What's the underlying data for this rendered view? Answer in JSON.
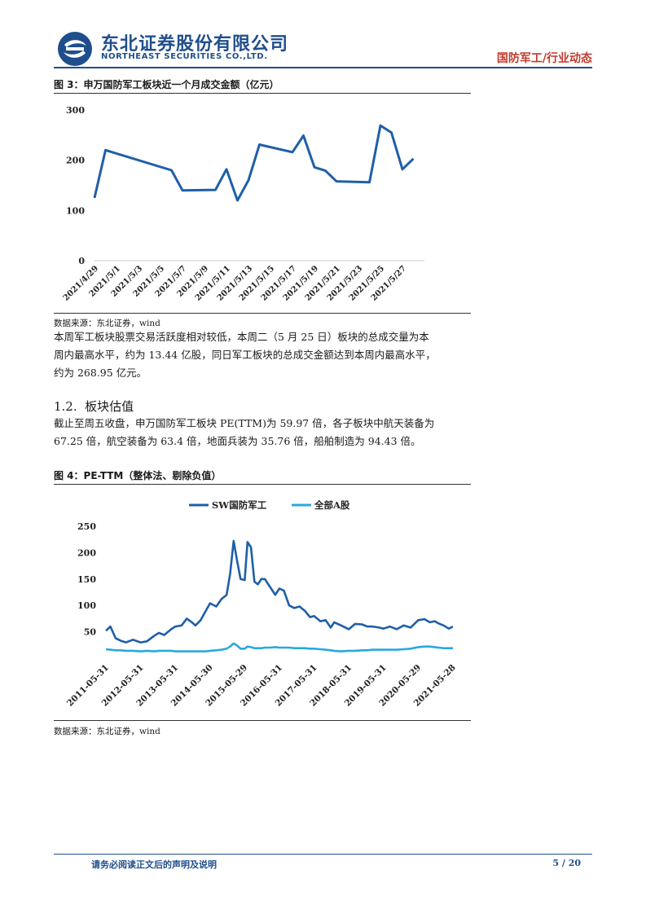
{
  "header": {
    "company_cn": "东北证券股份有限公司",
    "company_en": "NORTHEAST SECURITIES CO.,LTD.",
    "report_tag": "国防军工/行业动态",
    "brand_color": "#1f4e8c",
    "tag_color": "#c0392b"
  },
  "figure3": {
    "title": "图 3：申万国防军工板块近一个月成交金额（亿元）",
    "source": "数据来源：东北证券，wind"
  },
  "paragraph1": {
    "lines": [
      "本周军工板块股票交易活跃度相对较低，本周二（5 月 25 日）板块的总成交量为本",
      "周内最高水平，约为 13.44 亿股，同日军工板块的总成交金额达到本周内最高水平，",
      "约为 268.95 亿元。"
    ]
  },
  "section": {
    "number": "1.2.",
    "title": "板块估值"
  },
  "paragraph2": {
    "lines": [
      "截止至周五收盘，申万国防军工板块 PE(TTM)为 59.97 倍，各子板块中航天装备为",
      "67.25 倍，航空装备为 63.4 倍，地面兵装为 35.76 倍，船舶制造为 94.43 倍。"
    ]
  },
  "figure4": {
    "title": "图 4：PE-TTM（整体法、剔除负值）",
    "source": "数据来源：东北证券，wind"
  },
  "footer": {
    "note": "请务必阅读正文后的声明及说明",
    "page": "5 / 20"
  },
  "chart_data": [
    {
      "type": "line",
      "title": "",
      "ylim": [
        0,
        300
      ],
      "y_ticks": [
        "0",
        "100",
        "200",
        "300"
      ],
      "x_tick_labels": [
        "2021/4/29",
        "2021/5/1",
        "2021/5/3",
        "2021/5/5",
        "2021/5/7",
        "2021/5/9",
        "2021/5/11",
        "2021/5/13",
        "2021/5/15",
        "2021/5/17",
        "2021/5/19",
        "2021/5/21",
        "2021/5/23",
        "2021/5/25",
        "2021/5/27"
      ],
      "x": [
        "2021/4/29",
        "2021/4/30",
        "2021/5/6",
        "2021/5/7",
        "2021/5/10",
        "2021/5/11",
        "2021/5/12",
        "2021/5/13",
        "2021/5/14",
        "2021/5/17",
        "2021/5/18",
        "2021/5/19",
        "2021/5/20",
        "2021/5/21",
        "2021/5/24",
        "2021/5/25",
        "2021/5/26",
        "2021/5/27",
        "2021/5/28"
      ],
      "series": [
        {
          "color": "#1f5fa8",
          "values": [
            125,
            220,
            180,
            140,
            141,
            182,
            120,
            160,
            231,
            216,
            249,
            186,
            179,
            158,
            156,
            269,
            255,
            182,
            203
          ]
        }
      ],
      "grid": false,
      "legend": "none"
    },
    {
      "type": "line",
      "title": "",
      "ylim": [
        0,
        250
      ],
      "y_ticks": [
        "50",
        "100",
        "150",
        "200",
        "250"
      ],
      "x_tick_labels": [
        "2011-05-31",
        "2012-05-31",
        "2013-05-31",
        "2014-05-30",
        "2015-05-29",
        "2016-05-31",
        "2017-05-31",
        "2018-05-31",
        "2019-05-31",
        "2020-05-29",
        "2021-05-28"
      ],
      "x": [
        2011.42,
        2011.55,
        2011.7,
        2011.85,
        2012.0,
        2012.2,
        2012.42,
        2012.6,
        2012.8,
        2012.95,
        2013.1,
        2013.3,
        2013.42,
        2013.6,
        2013.75,
        2013.9,
        2014.0,
        2014.15,
        2014.3,
        2014.42,
        2014.6,
        2014.75,
        2014.9,
        2015.0,
        2015.1,
        2015.2,
        2015.3,
        2015.42,
        2015.5,
        2015.6,
        2015.7,
        2015.8,
        2015.9,
        2016.0,
        2016.15,
        2016.3,
        2016.42,
        2016.55,
        2016.7,
        2016.85,
        2017.0,
        2017.15,
        2017.3,
        2017.42,
        2017.6,
        2017.75,
        2017.9,
        2018.0,
        2018.2,
        2018.42,
        2018.6,
        2018.8,
        2018.95,
        2019.1,
        2019.3,
        2019.42,
        2019.6,
        2019.8,
        2020.0,
        2020.2,
        2020.42,
        2020.6,
        2020.75,
        2020.9,
        2021.0,
        2021.15,
        2021.3,
        2021.42
      ],
      "series": [
        {
          "name": "SW国防军工",
          "color": "#1f5fa8",
          "values": [
            52,
            60,
            38,
            33,
            30,
            35,
            30,
            32,
            42,
            48,
            44,
            55,
            60,
            62,
            75,
            68,
            62,
            72,
            90,
            104,
            98,
            112,
            120,
            160,
            222,
            185,
            150,
            148,
            220,
            210,
            145,
            140,
            150,
            150,
            135,
            120,
            132,
            128,
            100,
            95,
            98,
            90,
            78,
            80,
            70,
            72,
            58,
            68,
            62,
            55,
            65,
            64,
            60,
            60,
            58,
            56,
            60,
            55,
            62,
            58,
            72,
            74,
            68,
            70,
            66,
            62,
            56,
            60
          ]
        },
        {
          "name": "全部A股",
          "color": "#29a8e0",
          "values": [
            17,
            16,
            15,
            15,
            14,
            14,
            13,
            14,
            13,
            14,
            14,
            14,
            13,
            13,
            13,
            13,
            13,
            13,
            13,
            14,
            15,
            16,
            18,
            22,
            28,
            24,
            18,
            18,
            22,
            21,
            19,
            19,
            19,
            20,
            20,
            21,
            20,
            20,
            20,
            19,
            19,
            19,
            18,
            18,
            17,
            16,
            15,
            14,
            13,
            14,
            14,
            15,
            15,
            16,
            16,
            16,
            16,
            16,
            17,
            18,
            21,
            22,
            22,
            21,
            20,
            19,
            19,
            19
          ]
        }
      ],
      "grid": false,
      "legend": "top-center"
    }
  ]
}
